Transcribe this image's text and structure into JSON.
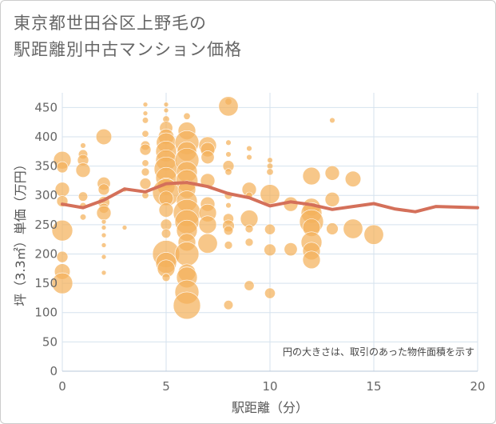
{
  "title": {
    "line1": "東京都世田谷区上野毛の",
    "line2": "駅距離別中古マンション価格"
  },
  "note": "円の大きさは、取引のあった物件面積を示す",
  "colors": {
    "bubble": "#F4B25C",
    "line": "#D4705A",
    "grid": "#D5E2EE"
  },
  "chart_data": {
    "type": "scatter",
    "xlabel": "駅距離（分）",
    "ylabel": "坪（3.3㎡）単価（万円）",
    "xlim": [
      0,
      20
    ],
    "ylim": [
      0,
      475
    ],
    "xticks": [
      0,
      5,
      10,
      15,
      20
    ],
    "yticks": [
      0,
      50,
      100,
      150,
      200,
      250,
      300,
      350,
      400,
      450
    ],
    "bubbles": [
      {
        "x": 0,
        "y": 360,
        "s": 2.5
      },
      {
        "x": 0,
        "y": 348,
        "s": 1.5
      },
      {
        "x": 0,
        "y": 310,
        "s": 2
      },
      {
        "x": 0,
        "y": 290,
        "s": 1.5
      },
      {
        "x": 0,
        "y": 240,
        "s": 3
      },
      {
        "x": 0,
        "y": 195,
        "s": 1.5
      },
      {
        "x": 0,
        "y": 170,
        "s": 2.2
      },
      {
        "x": 0,
        "y": 150,
        "s": 3
      },
      {
        "x": 1,
        "y": 385,
        "s": 0.6
      },
      {
        "x": 1,
        "y": 370,
        "s": 1.2
      },
      {
        "x": 1,
        "y": 360,
        "s": 1.5
      },
      {
        "x": 1,
        "y": 343,
        "s": 2
      },
      {
        "x": 1,
        "y": 298,
        "s": 1.2
      },
      {
        "x": 1,
        "y": 282,
        "s": 0.8
      },
      {
        "x": 1,
        "y": 263,
        "s": 0.7
      },
      {
        "x": 2,
        "y": 400,
        "s": 2.2
      },
      {
        "x": 2,
        "y": 320,
        "s": 1.8
      },
      {
        "x": 2,
        "y": 310,
        "s": 1.5
      },
      {
        "x": 2,
        "y": 288,
        "s": 1.6
      },
      {
        "x": 2,
        "y": 278,
        "s": 1.3
      },
      {
        "x": 2,
        "y": 270,
        "s": 2
      },
      {
        "x": 2,
        "y": 255,
        "s": 0.5
      },
      {
        "x": 2,
        "y": 245,
        "s": 0.5
      },
      {
        "x": 2,
        "y": 232,
        "s": 0.5
      },
      {
        "x": 2,
        "y": 215,
        "s": 0.5
      },
      {
        "x": 2,
        "y": 195,
        "s": 0.5
      },
      {
        "x": 2,
        "y": 168,
        "s": 0.5
      },
      {
        "x": 3,
        "y": 310,
        "s": 0.5
      },
      {
        "x": 3,
        "y": 245,
        "s": 0.5
      },
      {
        "x": 4,
        "y": 455,
        "s": 0.5
      },
      {
        "x": 4,
        "y": 440,
        "s": 0.5
      },
      {
        "x": 4,
        "y": 428,
        "s": 0.7
      },
      {
        "x": 4,
        "y": 405,
        "s": 0.8
      },
      {
        "x": 4,
        "y": 385,
        "s": 1.2
      },
      {
        "x": 4,
        "y": 378,
        "s": 1.5
      },
      {
        "x": 4,
        "y": 355,
        "s": 0.8
      },
      {
        "x": 4,
        "y": 340,
        "s": 1
      },
      {
        "x": 4,
        "y": 320,
        "s": 1.5
      },
      {
        "x": 4,
        "y": 300,
        "s": 0.8
      },
      {
        "x": 5,
        "y": 455,
        "s": 0.5
      },
      {
        "x": 5,
        "y": 445,
        "s": 0.5
      },
      {
        "x": 5,
        "y": 430,
        "s": 0.8
      },
      {
        "x": 5,
        "y": 415,
        "s": 1.8
      },
      {
        "x": 5,
        "y": 400,
        "s": 2.2
      },
      {
        "x": 5,
        "y": 390,
        "s": 2.8
      },
      {
        "x": 5,
        "y": 375,
        "s": 3
      },
      {
        "x": 5,
        "y": 360,
        "s": 3
      },
      {
        "x": 5,
        "y": 345,
        "s": 3.5
      },
      {
        "x": 5,
        "y": 330,
        "s": 3
      },
      {
        "x": 5,
        "y": 315,
        "s": 2.5
      },
      {
        "x": 5,
        "y": 305,
        "s": 4
      },
      {
        "x": 5,
        "y": 295,
        "s": 2
      },
      {
        "x": 5,
        "y": 275,
        "s": 2
      },
      {
        "x": 5,
        "y": 250,
        "s": 1.5
      },
      {
        "x": 5,
        "y": 235,
        "s": 1.2
      },
      {
        "x": 5,
        "y": 200,
        "s": 4
      },
      {
        "x": 5,
        "y": 185,
        "s": 3
      },
      {
        "x": 5,
        "y": 175,
        "s": 2.5
      },
      {
        "x": 5,
        "y": 160,
        "s": 1
      },
      {
        "x": 6,
        "y": 435,
        "s": 0.8
      },
      {
        "x": 6,
        "y": 410,
        "s": 2.5
      },
      {
        "x": 6,
        "y": 390,
        "s": 3.5
      },
      {
        "x": 6,
        "y": 375,
        "s": 2.8
      },
      {
        "x": 6,
        "y": 360,
        "s": 3.5
      },
      {
        "x": 6,
        "y": 340,
        "s": 3
      },
      {
        "x": 6,
        "y": 325,
        "s": 3.2
      },
      {
        "x": 6,
        "y": 310,
        "s": 2.5
      },
      {
        "x": 6,
        "y": 290,
        "s": 3
      },
      {
        "x": 6,
        "y": 270,
        "s": 4
      },
      {
        "x": 6,
        "y": 255,
        "s": 3.5
      },
      {
        "x": 6,
        "y": 240,
        "s": 3
      },
      {
        "x": 6,
        "y": 220,
        "s": 2.5
      },
      {
        "x": 6,
        "y": 200,
        "s": 3.5
      },
      {
        "x": 6,
        "y": 168,
        "s": 2.5
      },
      {
        "x": 6,
        "y": 160,
        "s": 3
      },
      {
        "x": 6,
        "y": 135,
        "s": 3.5
      },
      {
        "x": 6,
        "y": 112,
        "s": 4
      },
      {
        "x": 7,
        "y": 385,
        "s": 2.5
      },
      {
        "x": 7,
        "y": 378,
        "s": 2
      },
      {
        "x": 7,
        "y": 365,
        "s": 1.8
      },
      {
        "x": 7,
        "y": 325,
        "s": 2
      },
      {
        "x": 7,
        "y": 285,
        "s": 2
      },
      {
        "x": 7,
        "y": 270,
        "s": 2.5
      },
      {
        "x": 7,
        "y": 250,
        "s": 2.5
      },
      {
        "x": 7,
        "y": 218,
        "s": 2.8
      },
      {
        "x": 8,
        "y": 460,
        "s": 0.8
      },
      {
        "x": 8,
        "y": 452,
        "s": 2.8
      },
      {
        "x": 8,
        "y": 390,
        "s": 0.6
      },
      {
        "x": 8,
        "y": 370,
        "s": 0.6
      },
      {
        "x": 8,
        "y": 350,
        "s": 1.5
      },
      {
        "x": 8,
        "y": 340,
        "s": 0.8
      },
      {
        "x": 8,
        "y": 300,
        "s": 1
      },
      {
        "x": 8,
        "y": 283,
        "s": 0.6
      },
      {
        "x": 8,
        "y": 260,
        "s": 1.4
      },
      {
        "x": 8,
        "y": 248,
        "s": 1.6
      },
      {
        "x": 8,
        "y": 240,
        "s": 1.2
      },
      {
        "x": 8,
        "y": 215,
        "s": 1
      },
      {
        "x": 8,
        "y": 113,
        "s": 1.2
      },
      {
        "x": 9,
        "y": 380,
        "s": 0.6
      },
      {
        "x": 9,
        "y": 365,
        "s": 0.6
      },
      {
        "x": 9,
        "y": 310,
        "s": 2
      },
      {
        "x": 9,
        "y": 300,
        "s": 0.8
      },
      {
        "x": 9,
        "y": 260,
        "s": 2.5
      },
      {
        "x": 9,
        "y": 243,
        "s": 1
      },
      {
        "x": 9,
        "y": 220,
        "s": 1
      },
      {
        "x": 9,
        "y": 146,
        "s": 1.3
      },
      {
        "x": 10,
        "y": 360,
        "s": 0.6
      },
      {
        "x": 10,
        "y": 350,
        "s": 0.7
      },
      {
        "x": 10,
        "y": 340,
        "s": 0.8
      },
      {
        "x": 10,
        "y": 302,
        "s": 2.8
      },
      {
        "x": 10,
        "y": 242,
        "s": 1.4
      },
      {
        "x": 10,
        "y": 207,
        "s": 1.6
      },
      {
        "x": 10,
        "y": 133,
        "s": 1.4
      },
      {
        "x": 11,
        "y": 285,
        "s": 2
      },
      {
        "x": 11,
        "y": 208,
        "s": 1.8
      },
      {
        "x": 12,
        "y": 333,
        "s": 2.5
      },
      {
        "x": 12,
        "y": 280,
        "s": 2.5
      },
      {
        "x": 12,
        "y": 270,
        "s": 3
      },
      {
        "x": 12,
        "y": 255,
        "s": 3.5
      },
      {
        "x": 12,
        "y": 245,
        "s": 2.5
      },
      {
        "x": 12,
        "y": 220,
        "s": 3
      },
      {
        "x": 12,
        "y": 205,
        "s": 2.5
      },
      {
        "x": 12,
        "y": 190,
        "s": 2.5
      },
      {
        "x": 13,
        "y": 428,
        "s": 0.6
      },
      {
        "x": 13,
        "y": 338,
        "s": 2
      },
      {
        "x": 13,
        "y": 293,
        "s": 2
      },
      {
        "x": 13,
        "y": 243,
        "s": 1.6
      },
      {
        "x": 14,
        "y": 328,
        "s": 2.2
      },
      {
        "x": 14,
        "y": 243,
        "s": 2.8
      },
      {
        "x": 15,
        "y": 233,
        "s": 2.8
      }
    ],
    "trend": {
      "x": [
        0,
        1,
        2,
        3,
        4,
        5,
        6,
        7,
        8,
        9,
        10,
        11,
        12,
        13,
        14,
        15,
        16,
        17,
        18,
        19,
        20
      ],
      "y": [
        285,
        279,
        292,
        311,
        306,
        320,
        322,
        315,
        303,
        296,
        282,
        289,
        284,
        276,
        281,
        286,
        277,
        272,
        281,
        280,
        279
      ]
    }
  }
}
